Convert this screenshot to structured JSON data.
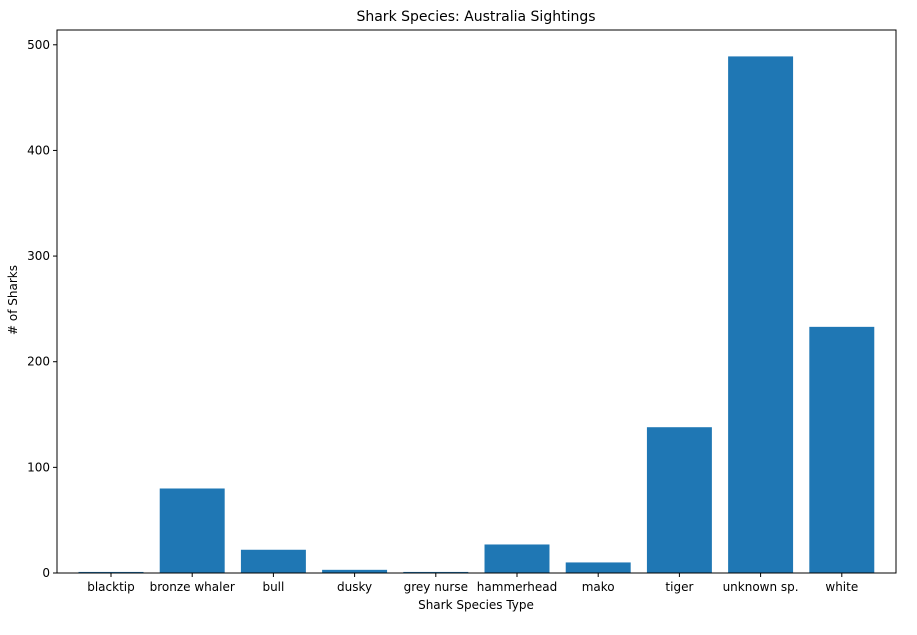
{
  "chart_data": {
    "type": "bar",
    "title": "Shark Species: Australia Sightings",
    "xlabel": "Shark Species Type",
    "ylabel": "# of Sharks",
    "categories": [
      "blacktip",
      "bronze whaler",
      "bull",
      "dusky",
      "grey nurse",
      "hammerhead",
      "mako",
      "tiger",
      "unknown sp.",
      "white"
    ],
    "values": [
      1,
      80,
      22,
      3,
      1,
      27,
      10,
      138,
      489,
      233
    ],
    "ylim": [
      0,
      514
    ],
    "yticks": [
      0,
      100,
      200,
      300,
      400,
      500
    ],
    "grid": false,
    "bar_color": "#1f77b4"
  }
}
